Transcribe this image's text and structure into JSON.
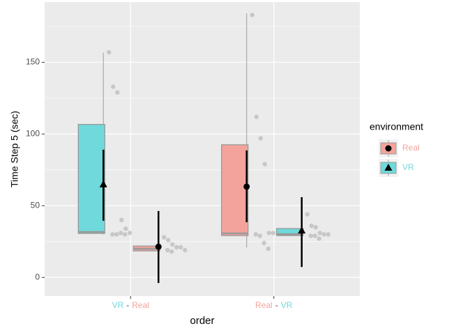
{
  "chart_data": {
    "type": "boxplot",
    "y_label": "Time Step 5 (sec)",
    "x_label": "order",
    "ylim": [
      -13,
      192
    ],
    "yticks": [
      0,
      50,
      100,
      150
    ],
    "y_minor_grid": [
      25,
      75,
      125,
      175
    ],
    "grid": true,
    "category_labels": [
      [
        "VR",
        "-",
        "Real"
      ],
      [
        "Real",
        "-",
        "VR"
      ]
    ],
    "legend_title": "environment",
    "series": [
      {
        "name": "Real",
        "color": "#f4a39c",
        "marker": "circle"
      },
      {
        "name": "VR",
        "color": "#6fd9db",
        "marker": "triangle"
      }
    ],
    "groups": [
      {
        "boxes": [
          {
            "environment": "VR",
            "whisker_low": 30,
            "q1": 30.7,
            "median": 31.7,
            "q3": 106.7,
            "whisker_high": 156.8,
            "mean": 64.8,
            "mean_low": 39.5,
            "mean_high": 89.1,
            "points": [
              157,
              133,
              129,
              40,
              34,
              31,
              30,
              30,
              31,
              30
            ]
          },
          {
            "environment": "Real",
            "whisker_low": 18.5,
            "q1": 18.5,
            "median": 20,
            "q3": 21.9,
            "whisker_high": 21.9,
            "mean": 21.4,
            "mean_low": -3.9,
            "mean_high": 46.3,
            "points": [
              28,
              26,
              23,
              21,
              21,
              19,
              19,
              18
            ]
          }
        ]
      },
      {
        "boxes": [
          {
            "environment": "Real",
            "whisker_low": 20.9,
            "q1": 29.2,
            "median": 30.7,
            "q3": 92.5,
            "whisker_high": 184.1,
            "mean": 63.3,
            "mean_low": 38.5,
            "mean_high": 88.6,
            "points": [
              183,
              112,
              97,
              79,
              31,
              31,
              30,
              29,
              24,
              20
            ]
          },
          {
            "environment": "VR",
            "whisker_low": 29.2,
            "q1": 29.2,
            "median": 30.2,
            "q3": 34.1,
            "whisker_high": 34.1,
            "mean": 32.6,
            "mean_low": 7.3,
            "mean_high": 56,
            "points": [
              44,
              36,
              35,
              31,
              30,
              30,
              29,
              29,
              27
            ]
          }
        ]
      }
    ]
  }
}
